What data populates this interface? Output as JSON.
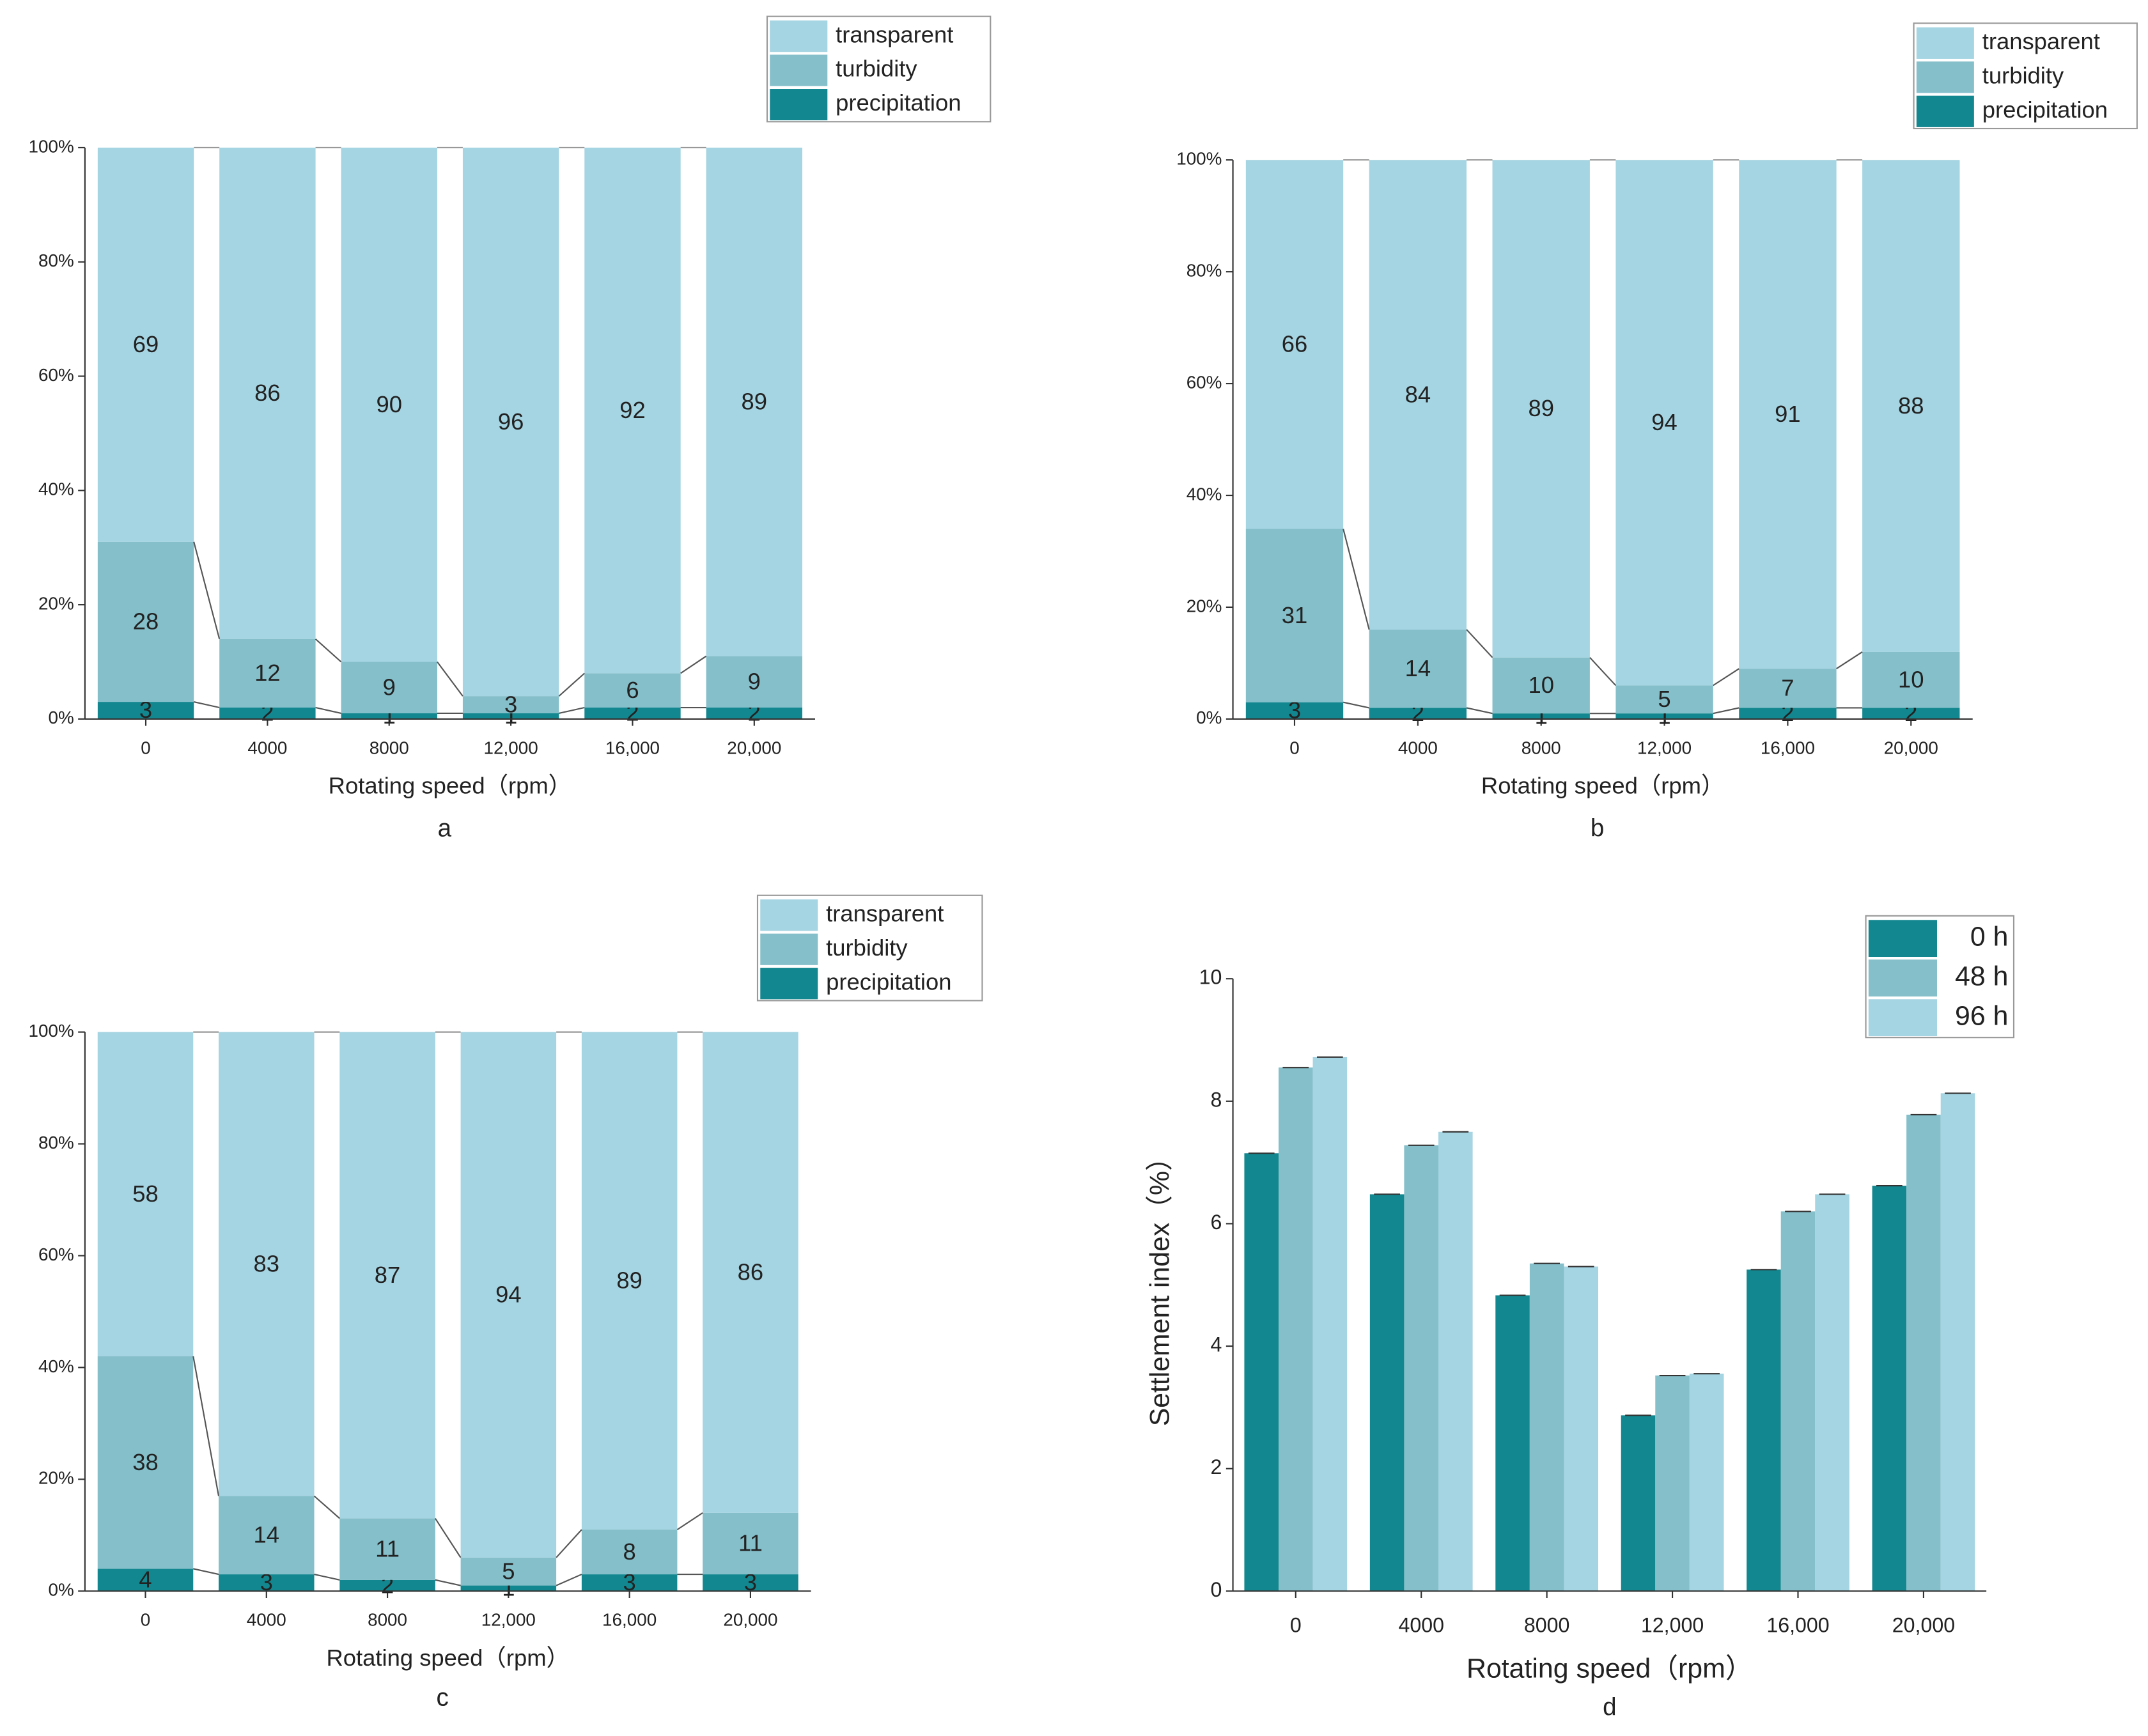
{
  "chart_data": [
    {
      "type": "stacked_bar",
      "panel_label": "a",
      "xlabel": "Rotating speed（rpm）",
      "categories": [
        "0",
        "4000",
        "8000",
        "12,000",
        "16,000",
        "20,000"
      ],
      "series": [
        {
          "name": "transparent",
          "color": "#a5d4e2",
          "values": [
            69,
            86,
            90,
            96,
            92,
            89
          ]
        },
        {
          "name": "turbidity",
          "color": "#84bfca",
          "values": [
            28,
            12,
            9,
            3,
            6,
            9
          ]
        },
        {
          "name": "precipitation",
          "color": "#13878f",
          "values": [
            3,
            2,
            1,
            1,
            2,
            2
          ]
        }
      ],
      "ylim": [
        0,
        100
      ],
      "yticks": [
        {
          "value": 0,
          "label": "0%"
        },
        {
          "value": 20,
          "label": "20%"
        },
        {
          "value": 40,
          "label": "40%"
        },
        {
          "value": 60,
          "label": "60%"
        },
        {
          "value": 80,
          "label": "80%"
        },
        {
          "value": 100,
          "label": "100%"
        }
      ]
    },
    {
      "type": "stacked_bar",
      "panel_label": "b",
      "xlabel": "Rotating speed（rpm）",
      "categories": [
        "0",
        "4000",
        "8000",
        "12,000",
        "16,000",
        "20,000"
      ],
      "series": [
        {
          "name": "transparent",
          "color": "#a5d4e2",
          "values": [
            66,
            84,
            89,
            94,
            91,
            88
          ]
        },
        {
          "name": "turbidity",
          "color": "#84bfca",
          "values": [
            31,
            14,
            10,
            5,
            7,
            10
          ]
        },
        {
          "name": "precipitation",
          "color": "#13878f",
          "values": [
            3,
            2,
            1,
            1,
            2,
            2
          ]
        }
      ],
      "ylim": [
        0,
        100
      ],
      "yticks": [
        {
          "value": 0,
          "label": "0%"
        },
        {
          "value": 20,
          "label": "20%"
        },
        {
          "value": 40,
          "label": "40%"
        },
        {
          "value": 60,
          "label": "60%"
        },
        {
          "value": 80,
          "label": "80%"
        },
        {
          "value": 100,
          "label": "100%"
        }
      ]
    },
    {
      "type": "stacked_bar",
      "panel_label": "c",
      "xlabel": "Rotating speed（rpm）",
      "categories": [
        "0",
        "4000",
        "8000",
        "12,000",
        "16,000",
        "20,000"
      ],
      "series": [
        {
          "name": "transparent",
          "color": "#a5d4e2",
          "values": [
            58,
            83,
            87,
            94,
            89,
            86
          ]
        },
        {
          "name": "turbidity",
          "color": "#84bfca",
          "values": [
            38,
            14,
            11,
            5,
            8,
            11
          ]
        },
        {
          "name": "precipitation",
          "color": "#13878f",
          "values": [
            4,
            3,
            2,
            1,
            3,
            3
          ]
        }
      ],
      "ylim": [
        0,
        100
      ],
      "yticks": [
        {
          "value": 0,
          "label": "0%"
        },
        {
          "value": 20,
          "label": "20%"
        },
        {
          "value": 40,
          "label": "40%"
        },
        {
          "value": 60,
          "label": "60%"
        },
        {
          "value": 80,
          "label": "80%"
        },
        {
          "value": 100,
          "label": "100%"
        }
      ]
    },
    {
      "type": "bar",
      "panel_label": "d",
      "xlabel": "Rotating speed（rpm）",
      "ylabel": "Settlement index（%）",
      "categories": [
        "0",
        "4000",
        "8000",
        "12,000",
        "16,000",
        "20,000"
      ],
      "series": [
        {
          "name": "0 h",
          "color": "#13878f",
          "values": [
            7.15,
            6.48,
            4.83,
            2.87,
            5.25,
            6.62
          ]
        },
        {
          "name": "48 h",
          "color": "#84bfca",
          "values": [
            8.55,
            7.28,
            5.35,
            3.52,
            6.2,
            7.78
          ]
        },
        {
          "name": "96 h",
          "color": "#a5d4e2",
          "values": [
            8.72,
            7.5,
            5.3,
            3.55,
            6.48,
            8.13
          ]
        }
      ],
      "ylim": [
        0,
        10
      ],
      "yticks": [
        0,
        2,
        4,
        6,
        8,
        10
      ]
    }
  ]
}
